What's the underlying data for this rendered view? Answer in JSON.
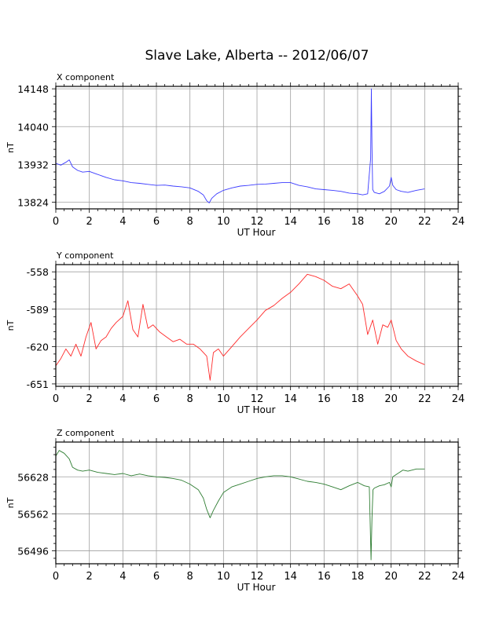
{
  "title": "Slave Lake, Alberta -- 2012/06/07",
  "colors": {
    "x": "#3b3bff",
    "y": "#ff2a2a",
    "z": "#2e7d32",
    "grid": "#a0a0a0"
  },
  "chart_data": [
    {
      "type": "line",
      "panel_label": "X component",
      "xlabel": "UT Hour",
      "ylabel": "nT",
      "xlim": [
        0,
        24
      ],
      "ylim": [
        13805,
        14155
      ],
      "xticks": [
        0,
        2,
        4,
        6,
        8,
        10,
        12,
        14,
        16,
        18,
        20,
        22,
        24
      ],
      "yticks": [
        13824,
        13932,
        14040,
        14148
      ],
      "grid": true,
      "series": [
        {
          "color": "#3b3bff",
          "x": [
            0,
            0.3,
            0.6,
            0.8,
            1.0,
            1.3,
            1.6,
            2.0,
            2.4,
            3.0,
            3.5,
            4.0,
            4.5,
            5.0,
            5.5,
            6.0,
            6.5,
            7.0,
            7.5,
            8.0,
            8.5,
            8.8,
            9.0,
            9.15,
            9.3,
            9.6,
            10.0,
            10.5,
            11.0,
            11.5,
            12.0,
            12.5,
            13.0,
            13.5,
            14.0,
            14.5,
            15.0,
            15.5,
            16.0,
            16.5,
            17.0,
            17.5,
            18.0,
            18.3,
            18.6,
            18.78,
            18.82,
            18.86,
            18.9,
            19.0,
            19.3,
            19.6,
            19.9,
            20.0,
            20.1,
            20.3,
            20.6,
            21.0,
            21.5,
            22.0
          ],
          "y": [
            13935,
            13930,
            13938,
            13945,
            13925,
            13915,
            13910,
            13912,
            13905,
            13895,
            13888,
            13885,
            13880,
            13878,
            13875,
            13872,
            13873,
            13870,
            13868,
            13865,
            13855,
            13845,
            13828,
            13822,
            13835,
            13848,
            13858,
            13865,
            13870,
            13872,
            13875,
            13876,
            13878,
            13880,
            13880,
            13872,
            13868,
            13862,
            13860,
            13858,
            13855,
            13850,
            13848,
            13845,
            13848,
            13950,
            14148,
            13980,
            13860,
            13852,
            13848,
            13855,
            13870,
            13895,
            13872,
            13860,
            13855,
            13852,
            13858,
            13862
          ]
        }
      ]
    },
    {
      "type": "line",
      "panel_label": "Y component",
      "xlabel": "UT Hour",
      "ylabel": "nT",
      "xlim": [
        0,
        24
      ],
      "ylim": [
        -653,
        -552
      ],
      "xticks": [
        0,
        2,
        4,
        6,
        8,
        10,
        12,
        14,
        16,
        18,
        20,
        22,
        24
      ],
      "yticks": [
        -651,
        -620,
        -589,
        -558
      ],
      "grid": true,
      "series": [
        {
          "color": "#ff2a2a",
          "x": [
            0,
            0.3,
            0.6,
            0.9,
            1.2,
            1.5,
            1.8,
            2.1,
            2.4,
            2.7,
            3.0,
            3.3,
            3.6,
            4.0,
            4.3,
            4.6,
            4.9,
            5.2,
            5.5,
            5.8,
            6.2,
            6.6,
            7.0,
            7.4,
            7.8,
            8.2,
            8.6,
            9.0,
            9.2,
            9.4,
            9.7,
            10.0,
            10.5,
            11.0,
            11.5,
            12.0,
            12.5,
            13.0,
            13.5,
            14.0,
            14.5,
            15.0,
            15.5,
            16.0,
            16.5,
            17.0,
            17.5,
            18.0,
            18.3,
            18.6,
            18.9,
            19.2,
            19.5,
            19.8,
            20.0,
            20.3,
            20.6,
            21.0,
            21.5,
            22.0
          ],
          "y": [
            -636,
            -630,
            -622,
            -628,
            -618,
            -628,
            -612,
            -600,
            -622,
            -615,
            -612,
            -605,
            -600,
            -595,
            -582,
            -606,
            -612,
            -585,
            -605,
            -602,
            -608,
            -612,
            -616,
            -614,
            -618,
            -618,
            -622,
            -628,
            -648,
            -625,
            -622,
            -628,
            -620,
            -612,
            -605,
            -598,
            -590,
            -586,
            -580,
            -575,
            -568,
            -560,
            -562,
            -565,
            -570,
            -572,
            -568,
            -578,
            -585,
            -610,
            -598,
            -618,
            -602,
            -604,
            -598,
            -615,
            -622,
            -628,
            -632,
            -635
          ]
        }
      ]
    },
    {
      "type": "line",
      "panel_label": "Z component",
      "xlabel": "UT Hour",
      "ylabel": "nT",
      "xlim": [
        0,
        24
      ],
      "ylim": [
        56473,
        56690
      ],
      "xticks": [
        0,
        2,
        4,
        6,
        8,
        10,
        12,
        14,
        16,
        18,
        20,
        22,
        24
      ],
      "yticks": [
        56496,
        56562,
        56628
      ],
      "grid": true,
      "series": [
        {
          "color": "#2e7d32",
          "x": [
            0,
            0.2,
            0.5,
            0.8,
            1.0,
            1.3,
            1.6,
            2.0,
            2.5,
            3.0,
            3.5,
            4.0,
            4.5,
            5.0,
            5.5,
            6.0,
            6.5,
            7.0,
            7.5,
            8.0,
            8.5,
            8.8,
            9.0,
            9.2,
            9.4,
            9.7,
            10.0,
            10.5,
            11.0,
            11.5,
            12.0,
            12.5,
            13.0,
            13.5,
            14.0,
            14.5,
            15.0,
            15.5,
            16.0,
            16.5,
            17.0,
            17.5,
            18.0,
            18.4,
            18.7,
            18.8,
            18.86,
            18.92,
            19.0,
            19.3,
            19.6,
            19.9,
            20.0,
            20.1,
            20.4,
            20.7,
            21.0,
            21.5,
            22.0
          ],
          "y": [
            56665,
            56675,
            56670,
            56660,
            56645,
            56640,
            56638,
            56640,
            56636,
            56634,
            56632,
            56634,
            56630,
            56633,
            56630,
            56628,
            56627,
            56625,
            56622,
            56615,
            56605,
            56590,
            56570,
            56555,
            56568,
            56585,
            56600,
            56610,
            56615,
            56620,
            56625,
            56628,
            56630,
            56630,
            56628,
            56624,
            56620,
            56618,
            56615,
            56610,
            56605,
            56612,
            56618,
            56612,
            56610,
            56480,
            56555,
            56605,
            56608,
            56612,
            56614,
            56618,
            56610,
            56628,
            56634,
            56640,
            56638,
            56642,
            56642
          ]
        }
      ]
    }
  ]
}
